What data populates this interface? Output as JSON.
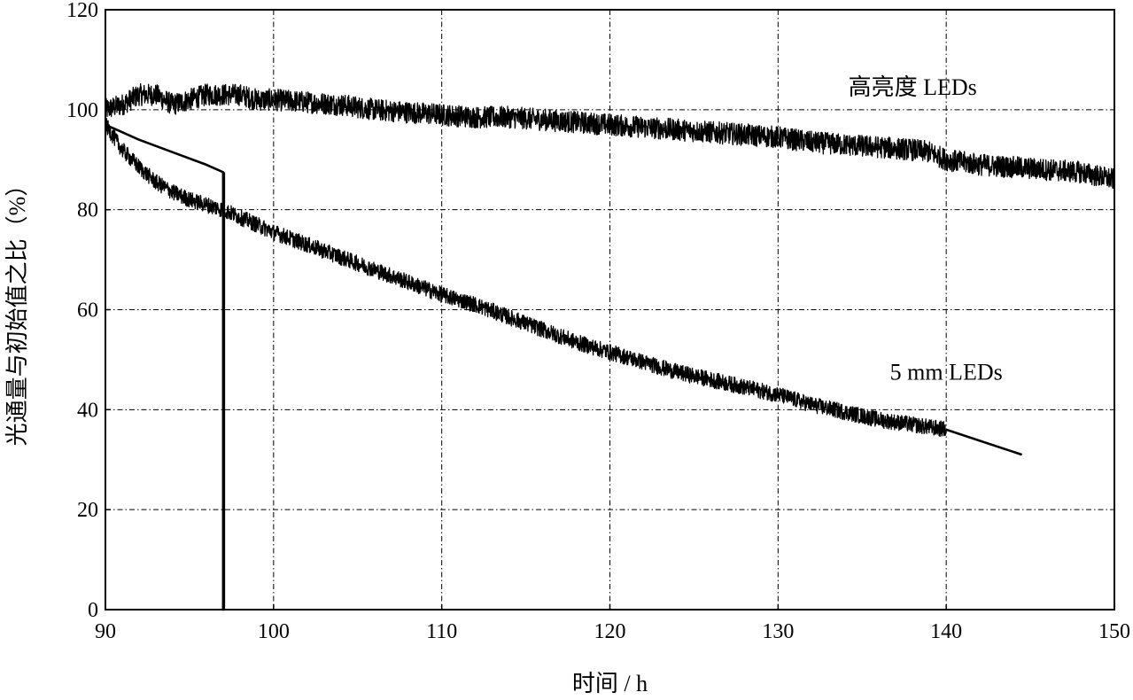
{
  "chart_data": {
    "type": "line",
    "title": "",
    "xlabel": "时间 / h",
    "ylabel": "光通量与初始值之比（%）",
    "xlim": [
      90,
      150
    ],
    "ylim": [
      0,
      120
    ],
    "x_ticks": [
      90,
      100,
      110,
      120,
      130,
      140,
      150
    ],
    "y_ticks": [
      0,
      20,
      40,
      60,
      80,
      100,
      120
    ],
    "grid": true,
    "grid_style": "dash-dot",
    "line_color": "#000000",
    "series": [
      {
        "name": "高亮度 LEDs",
        "noisy": true,
        "noise_amplitude": 2.2,
        "x": [
          90,
          91,
          92,
          93,
          94,
          95,
          96,
          97,
          98,
          99,
          100,
          102,
          104,
          106,
          108,
          110,
          112,
          114,
          116,
          118,
          120,
          122,
          124,
          126,
          128,
          130,
          132,
          134,
          136,
          138,
          139,
          140,
          142,
          144,
          146,
          148,
          150
        ],
        "y": [
          100,
          101,
          103,
          103,
          101,
          102,
          103,
          103,
          103,
          102,
          102,
          101.5,
          101,
          100,
          99.5,
          99,
          98.5,
          98.5,
          98,
          97.5,
          97,
          96.5,
          96,
          95.5,
          95,
          94.5,
          93.5,
          93,
          92.5,
          92,
          91.5,
          90,
          89,
          88.5,
          88,
          87.5,
          86
        ]
      },
      {
        "name": "5 mm LEDs",
        "noisy": true,
        "noise_amplitude": 1.6,
        "x": [
          90,
          91,
          92,
          93,
          94,
          95,
          96,
          97,
          98,
          99,
          100,
          102,
          104,
          106,
          108,
          110,
          112,
          114,
          116,
          118,
          120,
          122,
          124,
          126,
          128,
          130,
          132,
          134,
          136,
          138,
          140
        ],
        "y": [
          97,
          92,
          88.5,
          85.5,
          83.5,
          82,
          81,
          80,
          78.5,
          77,
          75.5,
          73,
          70.5,
          68,
          65.5,
          63,
          61,
          58.5,
          56,
          53.5,
          51.5,
          49.5,
          47.5,
          46,
          44.5,
          43,
          41,
          39.5,
          38,
          37,
          36
        ]
      },
      {
        "name": "",
        "noisy": false,
        "x": [
          140,
          144.5
        ],
        "y": [
          36,
          31
        ]
      },
      {
        "name": "",
        "noisy": false,
        "x": [
          90,
          92,
          94,
          96,
          97,
          97,
          97.05,
          97.05
        ],
        "y": [
          97,
          94,
          91.5,
          89,
          87.5,
          0,
          0,
          87.5
        ]
      }
    ],
    "annotations": [
      {
        "text": "高亮度 LEDs",
        "x": 138,
        "y": 103
      },
      {
        "text": "5 mm LEDs",
        "x": 140,
        "y": 46
      }
    ]
  }
}
